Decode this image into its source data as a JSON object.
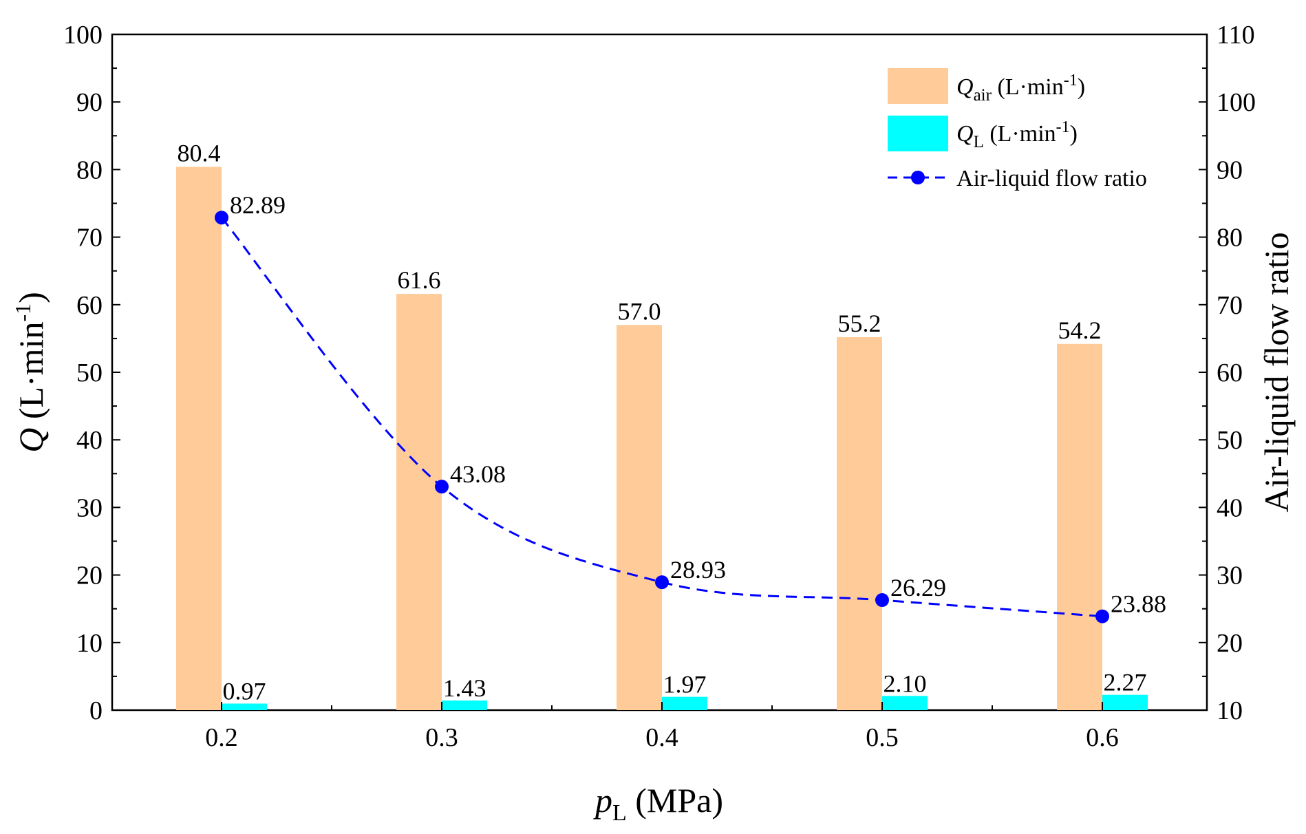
{
  "chart_data": {
    "type": "bar+line",
    "x_categories": [
      "0.2",
      "0.3",
      "0.4",
      "0.5",
      "0.6"
    ],
    "series": [
      {
        "name": "Q_air (L·min-1)",
        "kind": "bar",
        "axis": "left",
        "color": "#FFCC99",
        "values": [
          80.4,
          61.6,
          57.0,
          55.2,
          54.2
        ],
        "labels": [
          "80.4",
          "61.6",
          "57.0",
          "55.2",
          "54.2"
        ]
      },
      {
        "name": "Q_L (L·min-1)",
        "kind": "bar",
        "axis": "left",
        "color": "#00FFFF",
        "values": [
          0.97,
          1.43,
          1.97,
          2.1,
          2.27
        ],
        "labels": [
          "0.97",
          "1.43",
          "1.97",
          "2.10",
          "2.27"
        ]
      },
      {
        "name": "Air-liquid flow ratio",
        "kind": "line",
        "axis": "right",
        "color": "#0000FF",
        "line_style": "dashed",
        "marker": "circle",
        "values": [
          82.89,
          43.08,
          28.93,
          26.29,
          23.88
        ],
        "labels": [
          "82.89",
          "43.08",
          "28.93",
          "26.29",
          "23.88"
        ]
      }
    ],
    "x_axis": {
      "title_symbol": "p",
      "title_subscript": "L",
      "title_unit": " (MPa)"
    },
    "y_left": {
      "title_symbol": "Q",
      "title_unit_pre": " (L·min",
      "title_unit_sup": "-1",
      "title_unit_post": ")",
      "range": [
        0,
        100
      ],
      "ticks": [
        "0",
        "10",
        "20",
        "30",
        "40",
        "50",
        "60",
        "70",
        "80",
        "90",
        "100"
      ]
    },
    "y_right": {
      "title": "Air-liquid flow ratio",
      "range": [
        10,
        110
      ],
      "ticks": [
        "10",
        "20",
        "30",
        "40",
        "50",
        "60",
        "70",
        "80",
        "90",
        "100",
        "110"
      ]
    },
    "legend": {
      "placement": "top-right",
      "items": [
        {
          "symbol": "Q",
          "sub": "air",
          "unit_pre": " (L·min",
          "unit_sup": "-1",
          "unit_post": ")"
        },
        {
          "symbol": "Q",
          "sub": "L",
          "unit_pre": " (L·min",
          "unit_sup": "-1",
          "unit_post": ")"
        },
        {
          "text": "Air-liquid flow ratio"
        }
      ]
    }
  }
}
